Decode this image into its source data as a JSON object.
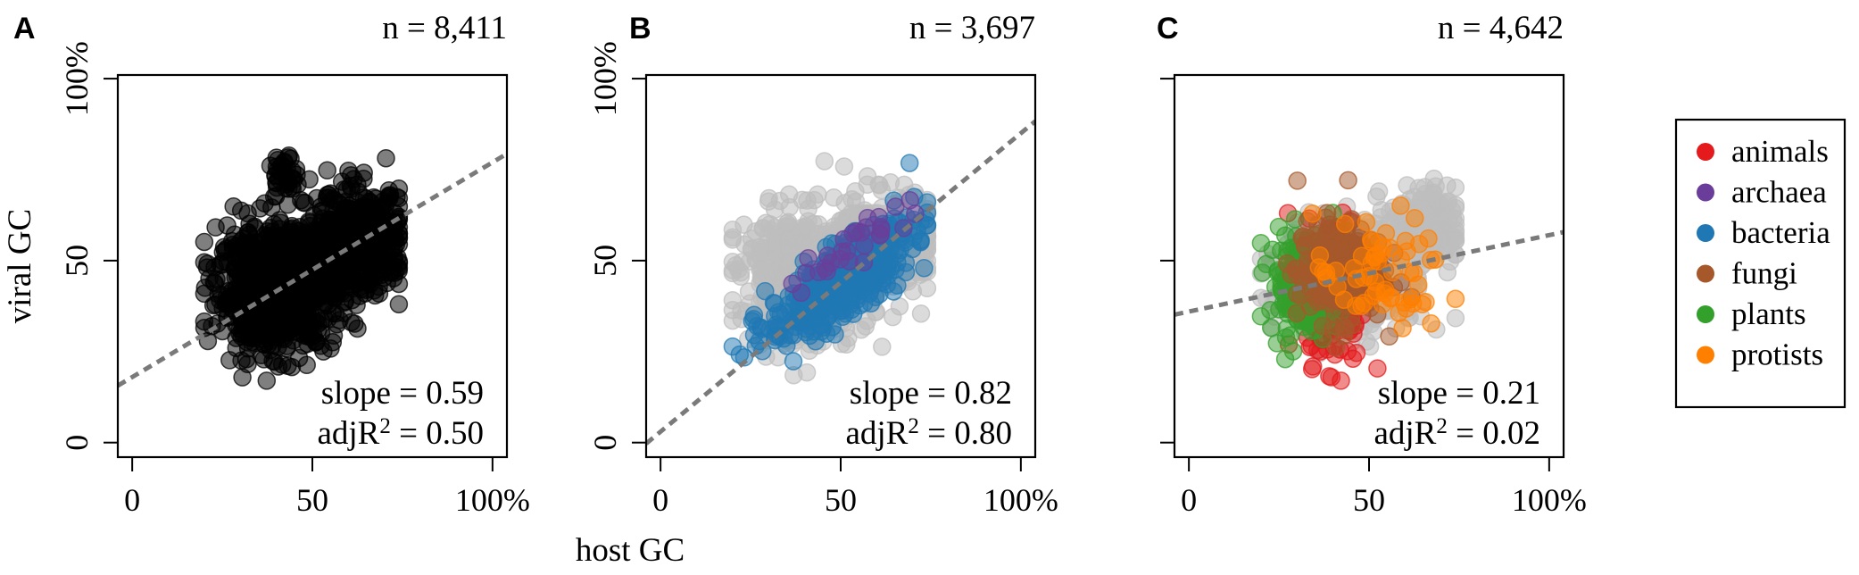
{
  "figure": {
    "xlabel": "host GC",
    "ylabel": "viral GC",
    "x_ticks": [
      "0",
      "50",
      "100%"
    ],
    "y_ticks": [
      "0",
      "50",
      "100%"
    ],
    "group_colors": {
      "animals": "#e41a1c",
      "archaea": "#6a3d9a",
      "bacteria": "#1f78b4",
      "fungi": "#a6582b",
      "plants": "#33a02c",
      "protists": "#ff7f00",
      "all": "#000000",
      "background": "#bdbdbd",
      "fit_line": "#7a7a7a"
    }
  },
  "legend": {
    "items": [
      {
        "label": "animals",
        "color": "#e41a1c"
      },
      {
        "label": "archaea",
        "color": "#6a3d9a"
      },
      {
        "label": "bacteria",
        "color": "#1f78b4"
      },
      {
        "label": "fungi",
        "color": "#a6582b"
      },
      {
        "label": "plants",
        "color": "#33a02c"
      },
      {
        "label": "protists",
        "color": "#ff7f00"
      }
    ]
  },
  "chart_data": [
    {
      "type": "scatter",
      "panel": "A",
      "n_label": "n = 8,411",
      "slope_label": "slope = 0.59",
      "adjr2_label_prefix": "adjR",
      "adjr2_label_suffix": " = 0.50",
      "xlim": [
        -4,
        104
      ],
      "ylim": [
        -4,
        101
      ],
      "fit": {
        "intercept": 18,
        "slope": 0.59
      },
      "clusters": [
        {
          "group": "all",
          "color": "#000000",
          "cx": 40,
          "cy": 42,
          "sx": 8,
          "sy": 8,
          "n": 900
        },
        {
          "group": "all",
          "color": "#000000",
          "cx": 62,
          "cy": 55,
          "sx": 7,
          "sy": 7,
          "n": 500
        },
        {
          "group": "all",
          "color": "#000000",
          "cx": 42,
          "cy": 72,
          "sx": 2,
          "sy": 4,
          "n": 40
        }
      ]
    },
    {
      "type": "scatter",
      "panel": "B",
      "n_label": "n = 3,697",
      "slope_label": "slope = 0.82",
      "adjr2_label_prefix": "adjR",
      "adjr2_label_suffix": " = 0.80",
      "xlim": [
        -4,
        104
      ],
      "ylim": [
        -4,
        101
      ],
      "fit": {
        "intercept": 3,
        "slope": 0.82
      },
      "clusters": [
        {
          "group": "background",
          "color": "#bdbdbd",
          "cx": 40,
          "cy": 45,
          "sx": 9,
          "sy": 9,
          "n": 500
        },
        {
          "group": "background",
          "color": "#bdbdbd",
          "cx": 62,
          "cy": 55,
          "sx": 7,
          "sy": 7,
          "n": 300
        },
        {
          "group": "bacteria",
          "color": "#1f78b4",
          "cx": 50,
          "cy": 44,
          "sx": 10,
          "sy": 8,
          "n": 500,
          "corr": 0.8
        },
        {
          "group": "archaea",
          "color": "#6a3d9a",
          "cx": 55,
          "cy": 55,
          "sx": 8,
          "sy": 6,
          "n": 30,
          "corr": 0.8
        }
      ]
    },
    {
      "type": "scatter",
      "panel": "C",
      "n_label": "n = 4,642",
      "slope_label": "slope = 0.21",
      "adjr2_label_prefix": "adjR",
      "adjr2_label_suffix": " = 0.02",
      "xlim": [
        -4,
        104
      ],
      "ylim": [
        -4,
        101
      ],
      "fit": {
        "intercept": 36,
        "slope": 0.21
      },
      "clusters": [
        {
          "group": "background",
          "color": "#bdbdbd",
          "cx": 45,
          "cy": 45,
          "sx": 10,
          "sy": 8,
          "n": 400
        },
        {
          "group": "background",
          "color": "#bdbdbd",
          "cx": 65,
          "cy": 58,
          "sx": 5,
          "sy": 6,
          "n": 200
        },
        {
          "group": "animals",
          "color": "#e41a1c",
          "cx": 41,
          "cy": 42,
          "sx": 4,
          "sy": 10,
          "n": 200
        },
        {
          "group": "plants",
          "color": "#33a02c",
          "cx": 32,
          "cy": 44,
          "sx": 5,
          "sy": 7,
          "n": 200
        },
        {
          "group": "fungi",
          "color": "#a6582b",
          "cx": 42,
          "cy": 47,
          "sx": 6,
          "sy": 7,
          "n": 250
        },
        {
          "group": "protists",
          "color": "#ff7f00",
          "cx": 53,
          "cy": 46,
          "sx": 9,
          "sy": 8,
          "n": 60
        }
      ]
    }
  ]
}
